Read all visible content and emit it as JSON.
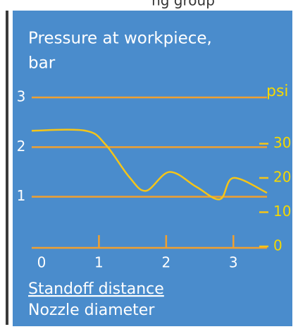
{
  "header": {
    "text": "ng group"
  },
  "chart_data": {
    "type": "line",
    "title_lines": [
      "Pressure at workpiece,",
      "bar"
    ],
    "y2label": "psi",
    "xlabel": {
      "numerator": "Standoff distance",
      "denominator": "Nozzle diameter"
    },
    "x": [
      0,
      0.8,
      1.1,
      1.45,
      1.7,
      2.05,
      2.45,
      2.8,
      3.0,
      3.5
    ],
    "values": [
      2.33,
      2.33,
      2.05,
      1.4,
      1.12,
      1.5,
      1.2,
      0.95,
      1.38,
      1.08
    ],
    "color": "#f5c518",
    "grid_color": "#f0a030",
    "xlim": [
      0,
      3.5
    ],
    "xticks": [
      0,
      1,
      2,
      3
    ],
    "ylim": [
      0,
      3
    ],
    "yticks": [
      1,
      2,
      3
    ],
    "y2lim": [
      0,
      43.5
    ],
    "y2ticks": [
      0,
      10,
      20,
      30
    ],
    "grid": true
  }
}
